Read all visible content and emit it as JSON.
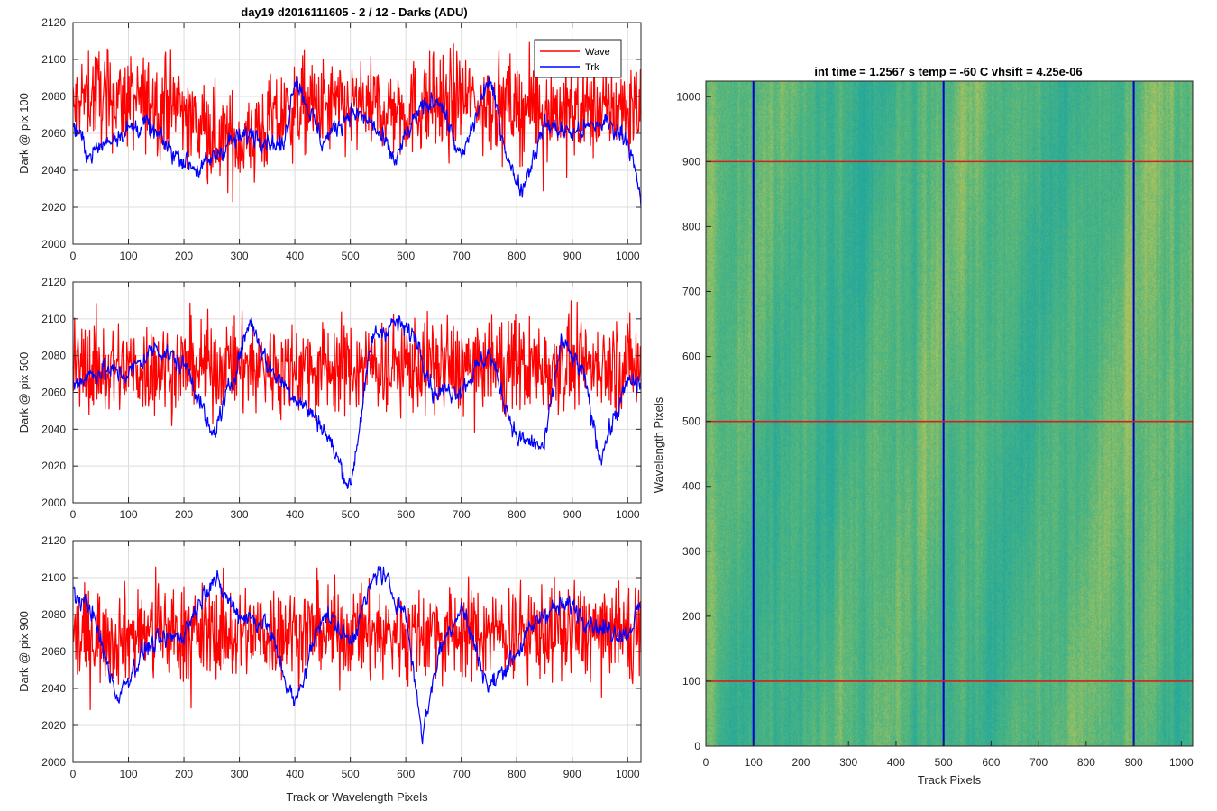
{
  "figure": {
    "left_title": "day19 d2016111605 - 2 / 12 - Darks (ADU)",
    "right_title": "int time = 1.2567 s    temp = -60 C    vhsift = 4.25e-06"
  },
  "colors": {
    "wave": "#ff0000",
    "trk": "#0000ff",
    "grid": "#dcdcdc",
    "axis": "#262626"
  },
  "chart_data": [
    {
      "type": "line",
      "title": "day19 d2016111605 - 2 / 12 - Darks (ADU)",
      "ylabel": "Dark @ pix 100",
      "xlabel": "",
      "xlim": [
        0,
        1024
      ],
      "ylim": [
        2000,
        2120
      ],
      "xticks": [
        0,
        100,
        200,
        300,
        400,
        500,
        600,
        700,
        800,
        900,
        1000
      ],
      "yticks": [
        2000,
        2020,
        2040,
        2060,
        2080,
        2100,
        2120
      ],
      "grid": true,
      "legend": {
        "position": "top-right",
        "entries": [
          "Wave",
          "Trk"
        ]
      },
      "series": [
        {
          "name": "Wave",
          "color": "#ff0000",
          "mean": 2073,
          "noise": 13,
          "x": [
            0,
            30,
            90,
            200,
            230,
            250,
            305,
            410,
            500,
            600,
            690,
            760,
            830,
            930,
            1024
          ],
          "y": [
            2070,
            2112,
            2092,
            2072,
            2028,
            2016,
            2003,
            2079,
            2074,
            2073,
            2098,
            2086,
            2073,
            2070,
            2078
          ]
        },
        {
          "name": "Trk",
          "color": "#0000ff",
          "mean": 2062,
          "noise": 4,
          "x": [
            0,
            30,
            80,
            130,
            180,
            230,
            280,
            330,
            380,
            400,
            450,
            500,
            540,
            580,
            620,
            660,
            700,
            750,
            790,
            810,
            850,
            900,
            960,
            1000,
            1024
          ],
          "y": [
            2065,
            2048,
            2060,
            2065,
            2050,
            2040,
            2055,
            2060,
            2052,
            2092,
            2055,
            2072,
            2065,
            2045,
            2070,
            2080,
            2045,
            2090,
            2040,
            2030,
            2065,
            2060,
            2066,
            2058,
            2022
          ]
        }
      ]
    },
    {
      "type": "line",
      "title": "",
      "ylabel": "Dark @ pix 500",
      "xlabel": "",
      "xlim": [
        0,
        1024
      ],
      "ylim": [
        2000,
        2120
      ],
      "xticks": [
        0,
        100,
        200,
        300,
        400,
        500,
        600,
        700,
        800,
        900,
        1000
      ],
      "yticks": [
        2000,
        2020,
        2040,
        2060,
        2080,
        2100,
        2120
      ],
      "grid": true,
      "series": [
        {
          "name": "Wave",
          "color": "#ff0000",
          "mean": 2074,
          "noise": 13,
          "x": [
            0,
            100,
            200,
            300,
            400,
            500,
            600,
            700,
            800,
            900,
            1024
          ],
          "y": [
            2072,
            2070,
            2072,
            2076,
            2070,
            2072,
            2078,
            2074,
            2073,
            2076,
            2075
          ]
        },
        {
          "name": "Trk",
          "color": "#0000ff",
          "mean": 2065,
          "noise": 4,
          "x": [
            0,
            50,
            100,
            150,
            210,
            250,
            280,
            320,
            350,
            400,
            450,
            500,
            540,
            580,
            620,
            650,
            700,
            750,
            800,
            850,
            880,
            920,
            950,
            1000,
            1024
          ],
          "y": [
            2065,
            2072,
            2070,
            2085,
            2072,
            2035,
            2060,
            2100,
            2075,
            2058,
            2042,
            2008,
            2090,
            2098,
            2090,
            2060,
            2062,
            2082,
            2035,
            2030,
            2088,
            2070,
            2025,
            2065,
            2065
          ]
        }
      ]
    },
    {
      "type": "line",
      "title": "",
      "ylabel": "Dark @ pix 900",
      "xlabel": "Track or Wavelength Pixels",
      "xlim": [
        0,
        1024
      ],
      "ylim": [
        2000,
        2120
      ],
      "xticks": [
        0,
        100,
        200,
        300,
        400,
        500,
        600,
        700,
        800,
        900,
        1000
      ],
      "yticks": [
        2000,
        2020,
        2040,
        2060,
        2080,
        2100,
        2120
      ],
      "grid": true,
      "series": [
        {
          "name": "Wave",
          "color": "#ff0000",
          "mean": 2070,
          "noise": 13,
          "x": [
            0,
            80,
            200,
            400,
            600,
            800,
            900,
            1024
          ],
          "y": [
            2068,
            2064,
            2070,
            2072,
            2068,
            2072,
            2074,
            2068
          ]
        },
        {
          "name": "Trk",
          "color": "#0000ff",
          "mean": 2070,
          "noise": 4,
          "x": [
            0,
            30,
            80,
            130,
            200,
            250,
            300,
            350,
            400,
            450,
            500,
            550,
            600,
            630,
            660,
            700,
            750,
            800,
            850,
            900,
            950,
            1000,
            1024
          ],
          "y": [
            2090,
            2085,
            2035,
            2062,
            2070,
            2100,
            2080,
            2075,
            2030,
            2082,
            2065,
            2105,
            2080,
            2015,
            2060,
            2085,
            2040,
            2060,
            2082,
            2085,
            2072,
            2070,
            2085
          ]
        }
      ]
    },
    {
      "type": "heatmap",
      "title": "int time = 1.2567 s    temp = -60 C    vhsift = 4.25e-06",
      "xlabel": "Track Pixels",
      "ylabel": "Wavelength Pixels",
      "xlim": [
        0,
        1024
      ],
      "ylim": [
        0,
        1024
      ],
      "xticks": [
        0,
        100,
        200,
        300,
        400,
        500,
        600,
        700,
        800,
        900,
        1000
      ],
      "yticks": [
        0,
        100,
        200,
        300,
        400,
        500,
        600,
        700,
        800,
        900,
        1000
      ],
      "colormap": [
        "#24a89c",
        "#54b67c",
        "#b5c35a"
      ],
      "vertical_markers": {
        "color": "#0000cc",
        "x": [
          100,
          500,
          900
        ]
      },
      "horizontal_markers": {
        "color": "#d62020",
        "y": [
          100,
          500,
          900
        ]
      }
    }
  ]
}
